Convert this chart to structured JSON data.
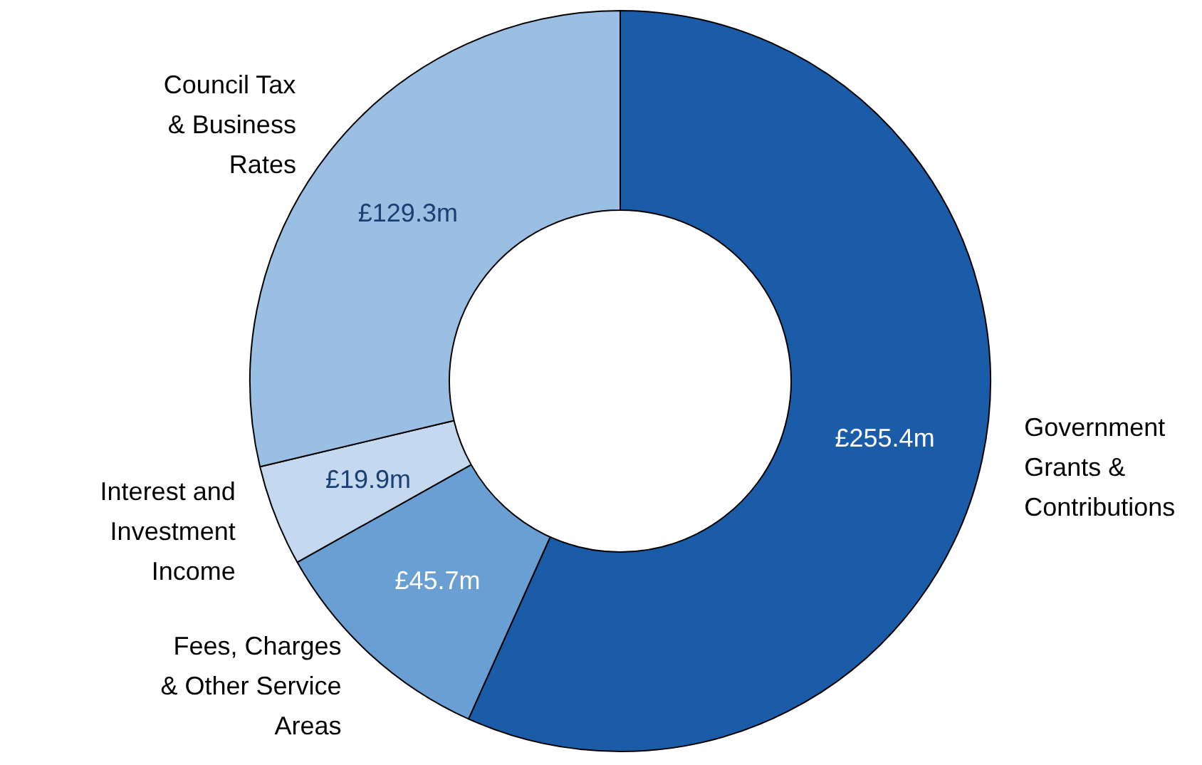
{
  "chart_data": {
    "type": "donut",
    "categories": [
      "Government\nGrants &\nContributions",
      "Fees, Charges\n& Other Service\nAreas",
      "Interest and\nInvestment\nIncome",
      "Council Tax\n& Business\nRates"
    ],
    "values": [
      255.4,
      45.7,
      19.9,
      129.3
    ],
    "colors": [
      "#1a5ca8",
      "#6a9fd4",
      "#c4d9ef",
      "#9bbfe3"
    ],
    "value_labels": [
      "£255.4m",
      "£45.7m",
      "£19.9m",
      "£129.3m"
    ]
  }
}
